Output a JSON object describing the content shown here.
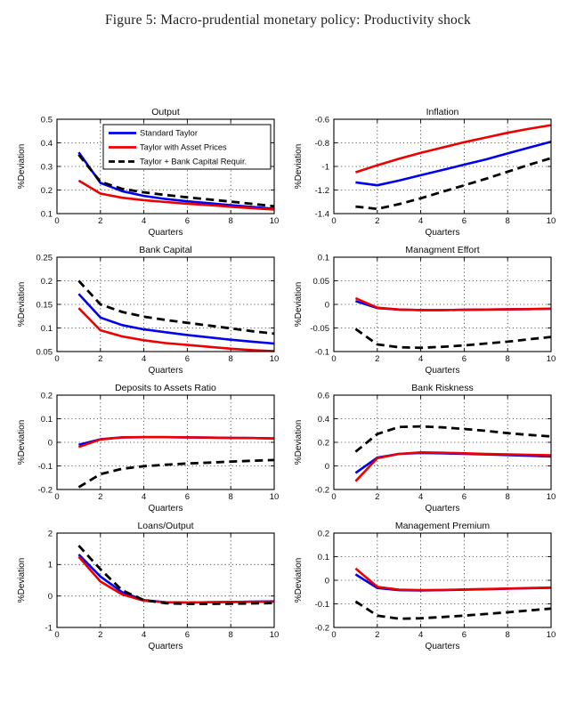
{
  "figure_title": "Figure 5: Macro-prudential monetary policy: Productivity shock",
  "colors": {
    "standard_taylor": "#0000ee",
    "taylor_asset_prices": "#ee0000",
    "taylor_bank_capital": "#000000",
    "axis": "#000000",
    "grid": "#222222",
    "background": "#ffffff"
  },
  "legend": {
    "position": "top-right-inside-first-subplot",
    "entries": [
      {
        "label": "Standard Taylor",
        "color": "#0000ee",
        "style": "solid"
      },
      {
        "label": "Taylor with Asset Prices",
        "color": "#ee0000",
        "style": "solid"
      },
      {
        "label": "Taylor + Bank Capital Requir.",
        "color": "#000000",
        "style": "dashed"
      }
    ]
  },
  "chart_data": [
    {
      "type": "line",
      "title": "Output",
      "xlabel": "Quarters",
      "ylabel": "%Deviation",
      "x": [
        1,
        2,
        3,
        4,
        5,
        6,
        7,
        8,
        9,
        10
      ],
      "xlim": [
        0,
        10
      ],
      "xtick_values": [
        0,
        2,
        4,
        6,
        8,
        10
      ],
      "xtick_labels": [
        "0",
        "2",
        "4",
        "6",
        "8",
        "10"
      ],
      "ylim": [
        0.1,
        0.5
      ],
      "ytick_values": [
        0.1,
        0.2,
        0.3,
        0.4,
        0.5
      ],
      "ytick_labels": [
        "0.1",
        "0.2",
        "0.3",
        "0.4",
        "0.5"
      ],
      "grid": true,
      "show_legend": true,
      "series": [
        {
          "name": "Standard Taylor",
          "color": "#0000ee",
          "style": "solid",
          "values": [
            0.36,
            0.23,
            0.195,
            0.175,
            0.162,
            0.152,
            0.144,
            0.136,
            0.128,
            0.12
          ]
        },
        {
          "name": "Taylor with Asset Prices",
          "color": "#ee0000",
          "style": "solid",
          "values": [
            0.24,
            0.185,
            0.167,
            0.157,
            0.149,
            0.142,
            0.136,
            0.129,
            0.123,
            0.117
          ]
        },
        {
          "name": "Taylor + Bank Capital Requir.",
          "color": "#000000",
          "style": "dashed",
          "values": [
            0.35,
            0.235,
            0.205,
            0.19,
            0.179,
            0.169,
            0.16,
            0.151,
            0.141,
            0.131
          ]
        }
      ]
    },
    {
      "type": "line",
      "title": "Inflation",
      "xlabel": "Quarters",
      "ylabel": "%Deviation",
      "x": [
        1,
        2,
        3,
        4,
        5,
        6,
        7,
        8,
        9,
        10
      ],
      "xlim": [
        0,
        10
      ],
      "xtick_values": [
        0,
        2,
        4,
        6,
        8,
        10
      ],
      "xtick_labels": [
        "0",
        "2",
        "4",
        "6",
        "8",
        "10"
      ],
      "ylim": [
        -1.4,
        -0.6
      ],
      "ytick_values": [
        -1.4,
        -1.2,
        -1,
        -0.8,
        -0.6
      ],
      "ytick_labels": [
        "-1.4",
        "-1.2",
        "-1",
        "-0.8",
        "-0.6"
      ],
      "grid": true,
      "show_legend": false,
      "series": [
        {
          "name": "Standard Taylor",
          "color": "#0000ee",
          "style": "solid",
          "values": [
            -1.135,
            -1.16,
            -1.12,
            -1.075,
            -1.03,
            -0.985,
            -0.94,
            -0.89,
            -0.84,
            -0.79
          ]
        },
        {
          "name": "Taylor with Asset Prices",
          "color": "#ee0000",
          "style": "solid",
          "values": [
            -1.05,
            -0.99,
            -0.935,
            -0.885,
            -0.84,
            -0.795,
            -0.755,
            -0.715,
            -0.68,
            -0.65
          ]
        },
        {
          "name": "Taylor + Bank Capital Requir.",
          "color": "#000000",
          "style": "dashed",
          "values": [
            -1.34,
            -1.36,
            -1.32,
            -1.27,
            -1.215,
            -1.16,
            -1.105,
            -1.045,
            -0.985,
            -0.93
          ]
        }
      ]
    },
    {
      "type": "line",
      "title": "Bank Capital",
      "xlabel": "Quarters",
      "ylabel": "%Deviation",
      "x": [
        1,
        2,
        3,
        4,
        5,
        6,
        7,
        8,
        9,
        10
      ],
      "xlim": [
        0,
        10
      ],
      "xtick_values": [
        0,
        2,
        4,
        6,
        8,
        10
      ],
      "xtick_labels": [
        "0",
        "2",
        "4",
        "6",
        "8",
        "10"
      ],
      "ylim": [
        0.05,
        0.25
      ],
      "ytick_values": [
        0.05,
        0.1,
        0.15,
        0.2,
        0.25
      ],
      "ytick_labels": [
        "0.05",
        "0.1",
        "0.15",
        "0.2",
        "0.25"
      ],
      "grid": true,
      "show_legend": false,
      "series": [
        {
          "name": "Standard Taylor",
          "color": "#0000ee",
          "style": "solid",
          "values": [
            0.172,
            0.122,
            0.106,
            0.097,
            0.091,
            0.085,
            0.08,
            0.075,
            0.071,
            0.067
          ]
        },
        {
          "name": "Taylor with Asset Prices",
          "color": "#ee0000",
          "style": "solid",
          "values": [
            0.142,
            0.095,
            0.082,
            0.074,
            0.068,
            0.064,
            0.06,
            0.056,
            0.053,
            0.051
          ]
        },
        {
          "name": "Taylor + Bank Capital Requir.",
          "color": "#000000",
          "style": "dashed",
          "values": [
            0.2,
            0.15,
            0.134,
            0.124,
            0.117,
            0.111,
            0.105,
            0.099,
            0.093,
            0.088
          ]
        }
      ]
    },
    {
      "type": "line",
      "title": "Managment Effort",
      "xlabel": "Quarters",
      "ylabel": "%Deviation",
      "x": [
        1,
        2,
        3,
        4,
        5,
        6,
        7,
        8,
        9,
        10
      ],
      "xlim": [
        0,
        10
      ],
      "xtick_values": [
        0,
        2,
        4,
        6,
        8,
        10
      ],
      "xtick_labels": [
        "0",
        "2",
        "4",
        "6",
        "8",
        "10"
      ],
      "ylim": [
        -0.1,
        0.1
      ],
      "ytick_values": [
        -0.1,
        -0.05,
        0,
        0.05,
        0.1
      ],
      "ytick_labels": [
        "-0.1",
        "-0.05",
        "0",
        "0.05",
        "0.1"
      ],
      "grid": true,
      "show_legend": false,
      "series": [
        {
          "name": "Standard Taylor",
          "color": "#0000ee",
          "style": "solid",
          "values": [
            0.007,
            -0.008,
            -0.011,
            -0.012,
            -0.012,
            -0.0115,
            -0.011,
            -0.0105,
            -0.01,
            -0.0095
          ]
        },
        {
          "name": "Taylor with Asset Prices",
          "color": "#ee0000",
          "style": "solid",
          "values": [
            0.013,
            -0.007,
            -0.011,
            -0.012,
            -0.012,
            -0.0115,
            -0.011,
            -0.0105,
            -0.01,
            -0.009
          ]
        },
        {
          "name": "Taylor + Bank Capital Requir.",
          "color": "#000000",
          "style": "dashed",
          "values": [
            -0.052,
            -0.085,
            -0.091,
            -0.092,
            -0.09,
            -0.087,
            -0.083,
            -0.079,
            -0.074,
            -0.069
          ]
        }
      ]
    },
    {
      "type": "line",
      "title": "Deposits to Assets Ratio",
      "xlabel": "Quarters",
      "ylabel": "%Deviation",
      "x": [
        1,
        2,
        3,
        4,
        5,
        6,
        7,
        8,
        9,
        10
      ],
      "xlim": [
        0,
        10
      ],
      "xtick_values": [
        0,
        2,
        4,
        6,
        8,
        10
      ],
      "xtick_labels": [
        "0",
        "2",
        "4",
        "6",
        "8",
        "10"
      ],
      "ylim": [
        -0.2,
        0.2
      ],
      "ytick_values": [
        -0.2,
        -0.1,
        0,
        0.1,
        0.2
      ],
      "ytick_labels": [
        "-0.2",
        "-0.1",
        "0",
        "0.1",
        "0.2"
      ],
      "grid": true,
      "show_legend": false,
      "series": [
        {
          "name": "Standard Taylor",
          "color": "#0000ee",
          "style": "solid",
          "values": [
            -0.01,
            0.013,
            0.021,
            0.022,
            0.022,
            0.021,
            0.02,
            0.019,
            0.018,
            0.017
          ]
        },
        {
          "name": "Taylor with Asset Prices",
          "color": "#ee0000",
          "style": "solid",
          "values": [
            -0.02,
            0.012,
            0.021,
            0.022,
            0.022,
            0.021,
            0.02,
            0.019,
            0.018,
            0.016
          ]
        },
        {
          "name": "Taylor + Bank Capital Requir.",
          "color": "#000000",
          "style": "dashed",
          "values": [
            -0.19,
            -0.135,
            -0.112,
            -0.101,
            -0.095,
            -0.09,
            -0.086,
            -0.082,
            -0.078,
            -0.075
          ]
        }
      ]
    },
    {
      "type": "line",
      "title": "Bank Riskness",
      "xlabel": "Quarters",
      "ylabel": "%Deviation",
      "x": [
        1,
        2,
        3,
        4,
        5,
        6,
        7,
        8,
        9,
        10
      ],
      "xlim": [
        0,
        10
      ],
      "xtick_values": [
        0,
        2,
        4,
        6,
        8,
        10
      ],
      "xtick_labels": [
        "0",
        "2",
        "4",
        "6",
        "8",
        "10"
      ],
      "ylim": [
        -0.2,
        0.6
      ],
      "ytick_values": [
        -0.2,
        0,
        0.2,
        0.4,
        0.6
      ],
      "ytick_labels": [
        "-0.2",
        "0",
        "0.2",
        "0.4",
        "0.6"
      ],
      "grid": true,
      "show_legend": false,
      "series": [
        {
          "name": "Standard Taylor",
          "color": "#0000ee",
          "style": "solid",
          "values": [
            -0.06,
            0.07,
            0.102,
            0.11,
            0.107,
            0.102,
            0.097,
            0.092,
            0.086,
            0.08
          ]
        },
        {
          "name": "Taylor with Asset Prices",
          "color": "#ee0000",
          "style": "solid",
          "values": [
            -0.13,
            0.065,
            0.102,
            0.115,
            0.112,
            0.107,
            0.102,
            0.098,
            0.094,
            0.09
          ]
        },
        {
          "name": "Taylor + Bank Capital Requir.",
          "color": "#000000",
          "style": "dashed",
          "values": [
            0.12,
            0.27,
            0.33,
            0.335,
            0.327,
            0.313,
            0.297,
            0.278,
            0.263,
            0.25
          ]
        }
      ]
    },
    {
      "type": "line",
      "title": "Loans/Output",
      "xlabel": "Quarters",
      "ylabel": "%Deviation",
      "x": [
        1,
        2,
        3,
        4,
        5,
        6,
        7,
        8,
        9,
        10
      ],
      "xlim": [
        0,
        10
      ],
      "xtick_values": [
        0,
        2,
        4,
        6,
        8,
        10
      ],
      "xtick_labels": [
        "0",
        "2",
        "4",
        "6",
        "8",
        "10"
      ],
      "ylim": [
        -1,
        2
      ],
      "ytick_values": [
        -1,
        0,
        1,
        2
      ],
      "ytick_labels": [
        "-1",
        "0",
        "1",
        "2"
      ],
      "grid": true,
      "show_legend": false,
      "series": [
        {
          "name": "Standard Taylor",
          "color": "#0000ee",
          "style": "solid",
          "values": [
            1.32,
            0.62,
            0.12,
            -0.13,
            -0.2,
            -0.21,
            -0.2,
            -0.19,
            -0.18,
            -0.17
          ]
        },
        {
          "name": "Taylor with Asset Prices",
          "color": "#ee0000",
          "style": "solid",
          "values": [
            1.25,
            0.46,
            0.05,
            -0.15,
            -0.2,
            -0.21,
            -0.2,
            -0.19,
            -0.185,
            -0.18
          ]
        },
        {
          "name": "Taylor + Bank Capital Requir.",
          "color": "#000000",
          "style": "dashed",
          "values": [
            1.6,
            0.85,
            0.18,
            -0.13,
            -0.23,
            -0.25,
            -0.25,
            -0.245,
            -0.235,
            -0.225
          ]
        }
      ]
    },
    {
      "type": "line",
      "title": "Management Premium",
      "xlabel": "Quarters",
      "ylabel": "%Deviation",
      "x": [
        1,
        2,
        3,
        4,
        5,
        6,
        7,
        8,
        9,
        10
      ],
      "xlim": [
        0,
        10
      ],
      "xtick_values": [
        0,
        2,
        4,
        6,
        8,
        10
      ],
      "xtick_labels": [
        "0",
        "2",
        "4",
        "6",
        "8",
        "10"
      ],
      "ylim": [
        -0.2,
        0.2
      ],
      "ytick_values": [
        -0.2,
        -0.1,
        0,
        0.1,
        0.2
      ],
      "ytick_labels": [
        "-0.2",
        "-0.1",
        "0",
        "0.1",
        "0.2"
      ],
      "grid": true,
      "show_legend": false,
      "series": [
        {
          "name": "Standard Taylor",
          "color": "#0000ee",
          "style": "solid",
          "values": [
            0.025,
            -0.033,
            -0.042,
            -0.043,
            -0.042,
            -0.04,
            -0.038,
            -0.036,
            -0.034,
            -0.032
          ]
        },
        {
          "name": "Taylor with Asset Prices",
          "color": "#ee0000",
          "style": "solid",
          "values": [
            0.05,
            -0.028,
            -0.04,
            -0.042,
            -0.041,
            -0.039,
            -0.037,
            -0.035,
            -0.033,
            -0.031
          ]
        },
        {
          "name": "Taylor + Bank Capital Requir.",
          "color": "#000000",
          "style": "dashed",
          "values": [
            -0.09,
            -0.15,
            -0.163,
            -0.161,
            -0.156,
            -0.15,
            -0.143,
            -0.136,
            -0.128,
            -0.12
          ]
        }
      ]
    }
  ]
}
